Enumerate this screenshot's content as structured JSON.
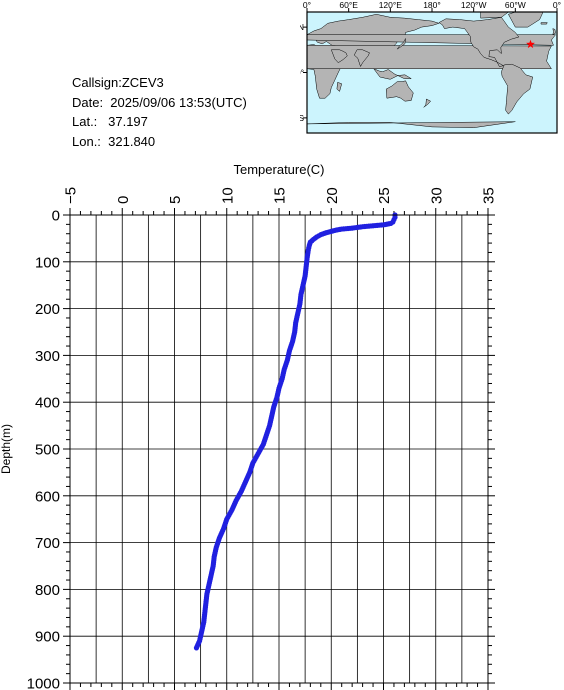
{
  "info": {
    "callsign": "Callsign:ZCEV3",
    "date": "Date:  2025/09/06 13:53(UTC)",
    "lat": "Lat.:   37.197",
    "lon": "Lon.:  321.840"
  },
  "map": {
    "lon_labels": [
      "0°",
      "60°E",
      "120°E",
      "180°",
      "120°W",
      "60°W",
      "0°"
    ],
    "lat_labels": [
      "60°N",
      "0°",
      "60°S"
    ],
    "station_lon": 321.84,
    "station_lat": 37.197,
    "colors": {
      "ocean": "#ccf4fd",
      "land": "#b4b4b4",
      "marker": "#ff0000"
    }
  },
  "chart_data": {
    "type": "scatter",
    "title": "",
    "xlabel": "Temperature(C)",
    "ylabel": "Depth(m)",
    "xlim": [
      -5,
      35
    ],
    "ylim": [
      1000,
      0
    ],
    "x_axis_position": "top",
    "grid": true,
    "x_ticks": [
      -5,
      0,
      5,
      10,
      15,
      20,
      25,
      30,
      35
    ],
    "y_ticks": [
      0,
      100,
      200,
      300,
      400,
      500,
      600,
      700,
      800,
      900,
      1000
    ],
    "color": "#2020e0",
    "profile": [
      [
        26.1,
        0
      ],
      [
        26.1,
        5
      ],
      [
        26.0,
        10
      ],
      [
        25.9,
        15
      ],
      [
        25.7,
        18
      ],
      [
        25.0,
        21
      ],
      [
        24.0,
        23
      ],
      [
        23.0,
        25
      ],
      [
        22.0,
        28
      ],
      [
        21.0,
        30
      ],
      [
        20.5,
        32
      ],
      [
        20.0,
        35
      ],
      [
        19.5,
        38
      ],
      [
        19.0,
        42
      ],
      [
        18.6,
        47
      ],
      [
        18.3,
        52
      ],
      [
        18.0,
        58
      ],
      [
        17.9,
        65
      ],
      [
        17.8,
        75
      ],
      [
        17.7,
        90
      ],
      [
        17.6,
        110
      ],
      [
        17.5,
        130
      ],
      [
        17.3,
        150
      ],
      [
        17.1,
        170
      ],
      [
        17.0,
        190
      ],
      [
        16.8,
        210
      ],
      [
        16.6,
        230
      ],
      [
        16.5,
        250
      ],
      [
        16.3,
        270
      ],
      [
        16.0,
        290
      ],
      [
        15.8,
        310
      ],
      [
        15.5,
        330
      ],
      [
        15.3,
        350
      ],
      [
        15.0,
        370
      ],
      [
        14.8,
        390
      ],
      [
        14.5,
        410
      ],
      [
        14.3,
        430
      ],
      [
        14.1,
        450
      ],
      [
        13.8,
        470
      ],
      [
        13.5,
        490
      ],
      [
        13.0,
        510
      ],
      [
        12.5,
        530
      ],
      [
        12.2,
        550
      ],
      [
        11.8,
        570
      ],
      [
        11.4,
        590
      ],
      [
        10.9,
        610
      ],
      [
        10.5,
        630
      ],
      [
        10.0,
        650
      ],
      [
        9.7,
        670
      ],
      [
        9.3,
        690
      ],
      [
        9.0,
        710
      ],
      [
        8.8,
        730
      ],
      [
        8.7,
        750
      ],
      [
        8.5,
        770
      ],
      [
        8.3,
        790
      ],
      [
        8.1,
        810
      ],
      [
        8.0,
        830
      ],
      [
        7.9,
        850
      ],
      [
        7.8,
        870
      ],
      [
        7.6,
        890
      ],
      [
        7.4,
        910
      ],
      [
        7.1,
        925
      ]
    ]
  }
}
